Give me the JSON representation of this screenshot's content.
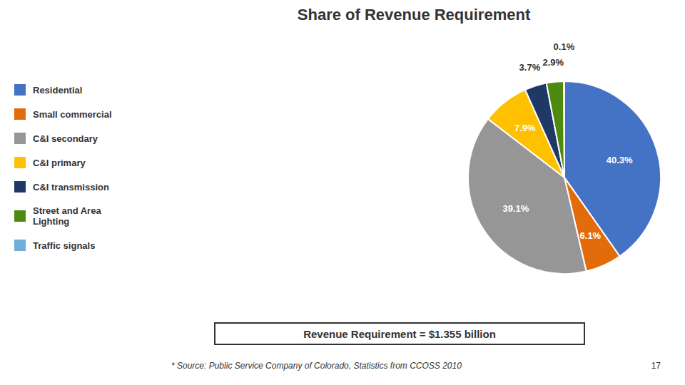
{
  "chart_data": {
    "type": "pie",
    "title": "Share of Revenue Requirement",
    "categories": [
      "Residential",
      "Small commercial",
      "C&I secondary",
      "C&I primary",
      "C&I transmission",
      "Street and Area\nLighting",
      "Traffic signals"
    ],
    "values": [
      40.3,
      6.1,
      39.1,
      7.9,
      3.7,
      2.9,
      0.1
    ],
    "value_labels": [
      "40.3%",
      "6.1%",
      "39.1%",
      "7.9%",
      "3.7%",
      "2.9%",
      "0.1%"
    ],
    "colors": [
      "#4472C4",
      "#E36C0A",
      "#969696",
      "#FFC000",
      "#1F3864",
      "#4F8A10",
      "#70ADD9"
    ],
    "data_labels": true,
    "legend": "left",
    "subtitle": "Revenue Requirement = $1.355 billion",
    "annotations": [
      "* Source: Public Service Company of Colorado, Statistics from CCOSS 2010",
      "17"
    ]
  }
}
